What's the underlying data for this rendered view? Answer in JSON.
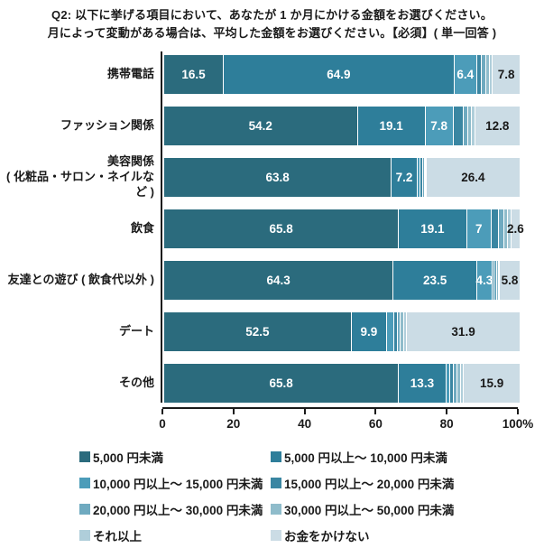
{
  "title": {
    "line1": "Q2: 以下に挙げる項目において、あなたが 1 か月にかける金額をお選びください。",
    "line2": "月によって変動がある場合は、平均した金額をお選びください。【必須】( 単一回答 )"
  },
  "chart_data": {
    "type": "bar",
    "orientation": "horizontal",
    "stacked": true,
    "unit": "%",
    "xlim": [
      0,
      100
    ],
    "x_tick_values": [
      0,
      20,
      40,
      60,
      80,
      100
    ],
    "x_tick_labels": [
      "0",
      "20",
      "40",
      "60",
      "80",
      "100%"
    ],
    "legend_position": "bottom",
    "series": [
      {
        "name": "5,000 円未満",
        "color": "#2B6B7D"
      },
      {
        "name": "5,000 円以上～ 10,000 円未満",
        "color": "#2E7E9A"
      },
      {
        "name": "10,000 円以上～ 15,000 円未満",
        "color": "#4C9CB9"
      },
      {
        "name": "15,000 円以上～ 20,000 円未満",
        "color": "#3A86A2"
      },
      {
        "name": "20,000 円以上～ 30,000 円未満",
        "color": "#6FAAC0"
      },
      {
        "name": "30,000 円以上～ 50,000 円未満",
        "color": "#8FBCCB"
      },
      {
        "name": "それ以上",
        "color": "#AFCEDA"
      },
      {
        "name": "お金をかけない",
        "color": "#CBDCE5"
      }
    ],
    "rows": [
      {
        "category_lines": [
          "携帯電話"
        ],
        "values": [
          16.5,
          64.9,
          6.4,
          1.4,
          1.2,
          1.0,
          0.8,
          7.8
        ],
        "labels": [
          "16.5",
          "64.9",
          "6.4",
          "",
          "",
          "",
          "",
          "7.8"
        ]
      },
      {
        "category_lines": [
          "ファッション関係"
        ],
        "values": [
          54.2,
          19.1,
          7.8,
          2.8,
          1.4,
          1.1,
          0.8,
          12.8
        ],
        "labels": [
          "54.2",
          "19.1",
          "7.8",
          "",
          "",
          "",
          "",
          "12.8"
        ]
      },
      {
        "category_lines": [
          "美容関係",
          "( 化粧品・サロン・ネイルなど )"
        ],
        "values": [
          63.8,
          7.2,
          0.8,
          0.7,
          0.5,
          0.3,
          0.3,
          26.4
        ],
        "labels": [
          "63.8",
          "7.2",
          "",
          "",
          "",
          "",
          "",
          "26.4"
        ]
      },
      {
        "category_lines": [
          "飲食"
        ],
        "values": [
          65.8,
          19.1,
          7.0,
          1.9,
          1.7,
          1.0,
          0.9,
          2.6
        ],
        "labels": [
          "65.8",
          "19.1",
          "7",
          "",
          "",
          "",
          "",
          "2.6"
        ]
      },
      {
        "category_lines": [
          "友達との遊び ( 飲食代以外 )"
        ],
        "values": [
          64.3,
          23.5,
          4.3,
          0.6,
          0.6,
          0.5,
          0.4,
          5.8
        ],
        "labels": [
          "64.3",
          "23.5",
          "4.3",
          "",
          "",
          "",
          "",
          "5.8"
        ]
      },
      {
        "category_lines": [
          "デート"
        ],
        "values": [
          52.5,
          9.9,
          2.1,
          0.9,
          0.9,
          0.9,
          0.9,
          31.9
        ],
        "labels": [
          "52.5",
          "9.9",
          "",
          "",
          "",
          "",
          "",
          "31.9"
        ]
      },
      {
        "category_lines": [
          "その他"
        ],
        "values": [
          65.8,
          13.3,
          1.2,
          1.0,
          1.0,
          0.9,
          0.9,
          15.9
        ],
        "labels": [
          "65.8",
          "13.3",
          "",
          "",
          "",
          "",
          "",
          "15.9"
        ]
      }
    ]
  }
}
